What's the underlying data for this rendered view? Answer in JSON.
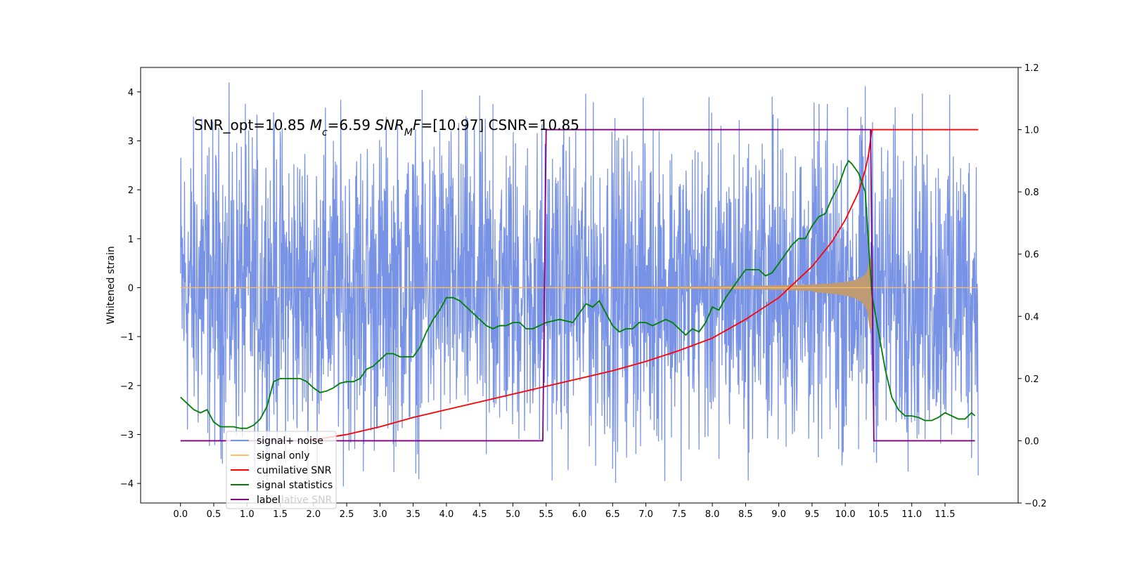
{
  "chart_data": {
    "type": "line",
    "title": "",
    "annotation": {
      "parts": [
        {
          "text": "SNR_opt=10.85 "
        },
        {
          "text": "M",
          "italic": true
        },
        {
          "text": "c",
          "italic": true,
          "sub": true
        },
        {
          "text": "=6.59    "
        },
        {
          "text": "SNR",
          "italic": true
        },
        {
          "text": "M",
          "italic": true,
          "sub": true
        },
        {
          "text": "F",
          "italic": true
        },
        {
          "text": "=[10.97] CSNR=10.85"
        }
      ]
    },
    "xlabel": "",
    "ylabel": "Whitened strain",
    "y2label": "",
    "xlim": [
      -0.6,
      12.6
    ],
    "ylim": [
      -4.4,
      4.5
    ],
    "y2lim": [
      -0.2,
      1.2
    ],
    "xticks": [
      0.0,
      0.5,
      1.0,
      1.5,
      2.0,
      2.5,
      3.0,
      3.5,
      4.0,
      4.5,
      5.0,
      5.5,
      6.0,
      6.5,
      7.0,
      7.5,
      8.0,
      8.5,
      9.0,
      9.5,
      10.0,
      10.5,
      11.0,
      11.5
    ],
    "xtick_labels": [
      "0.0",
      "0.5",
      "1.0",
      "1.5",
      "2.0",
      "2.5",
      "3.0",
      "3.5",
      "4.0",
      "4.5",
      "5.0",
      "5.5",
      "6.0",
      "6.5",
      "7.0",
      "7.5",
      "8.0",
      "8.5",
      "9.0",
      "9.5",
      "10.0",
      "10.5",
      "11.0",
      "11.5"
    ],
    "yticks": [
      -4,
      -3,
      -2,
      -1,
      0,
      1,
      2,
      3,
      4
    ],
    "ytick_labels": [
      "−4",
      "−3",
      "−2",
      "−1",
      "0",
      "1",
      "2",
      "3",
      "4"
    ],
    "y2ticks": [
      -0.2,
      0.0,
      0.2,
      0.4,
      0.6,
      0.8,
      1.0,
      1.2
    ],
    "y2tick_labels": [
      "−0.2",
      "0.0",
      "0.2",
      "0.4",
      "0.6",
      "0.8",
      "1.0",
      "1.2"
    ],
    "grid": false,
    "legend_position": "lower-left",
    "series": [
      {
        "name": "signal+ noise",
        "axis": "left",
        "color": "#7893e6",
        "kind": "noise",
        "x_range": [
          0.0,
          12.0
        ],
        "envelope": 2.5,
        "spikes": [
          {
            "x": 0.32,
            "y": 3.45
          },
          {
            "x": 1.7,
            "y": -2.7
          },
          {
            "x": 2.3,
            "y": 3.0
          },
          {
            "x": 2.75,
            "y": -3.75
          },
          {
            "x": 3.2,
            "y": -3.2
          },
          {
            "x": 4.7,
            "y": 3.75
          },
          {
            "x": 4.6,
            "y": -3.4
          },
          {
            "x": 5.4,
            "y": -3.1
          },
          {
            "x": 6.5,
            "y": -3.7
          },
          {
            "x": 7.2,
            "y": 3.2
          },
          {
            "x": 8.1,
            "y": -3.5
          },
          {
            "x": 8.9,
            "y": 3.9
          },
          {
            "x": 9.9,
            "y": -3.3
          },
          {
            "x": 10.3,
            "y": 4.12
          },
          {
            "x": 10.2,
            "y": -3.3
          },
          {
            "x": 11.2,
            "y": -3.1
          },
          {
            "x": 11.6,
            "y": -3.0
          },
          {
            "x": 3.9,
            "y": 3.2
          }
        ]
      },
      {
        "name": "signal only",
        "axis": "left",
        "color": "#ffbf66",
        "kind": "chirp",
        "merger_x": 10.4,
        "peak_amplitude": 1.0
      },
      {
        "name": "cumilative SNR",
        "axis": "right",
        "color": "#ff0000",
        "x": [
          1.9,
          2.5,
          3.0,
          3.5,
          4.0,
          4.5,
          5.0,
          5.5,
          6.0,
          6.5,
          7.0,
          7.5,
          8.0,
          8.5,
          9.0,
          9.5,
          9.8,
          10.0,
          10.2,
          10.3,
          10.35,
          10.4,
          10.42,
          12.0
        ],
        "values": [
          0.0,
          0.02,
          0.045,
          0.075,
          0.1,
          0.125,
          0.15,
          0.175,
          0.2,
          0.225,
          0.255,
          0.29,
          0.33,
          0.39,
          0.46,
          0.56,
          0.64,
          0.71,
          0.8,
          0.87,
          0.92,
          1.0,
          1.0,
          1.0
        ]
      },
      {
        "name": "signal statistics",
        "axis": "right",
        "color": "#007f00",
        "x": [
          0.0,
          0.05,
          0.1,
          0.2,
          0.3,
          0.4,
          0.5,
          0.6,
          0.7,
          0.8,
          0.9,
          1.0,
          1.1,
          1.2,
          1.3,
          1.4,
          1.5,
          1.6,
          1.7,
          1.8,
          1.9,
          2.0,
          2.1,
          2.2,
          2.3,
          2.4,
          2.5,
          2.6,
          2.7,
          2.8,
          2.9,
          3.0,
          3.1,
          3.2,
          3.3,
          3.4,
          3.5,
          3.6,
          3.7,
          3.8,
          3.9,
          4.0,
          4.1,
          4.2,
          4.3,
          4.4,
          4.5,
          4.6,
          4.7,
          4.8,
          4.9,
          5.0,
          5.1,
          5.2,
          5.3,
          5.4,
          5.5,
          5.6,
          5.7,
          5.8,
          5.9,
          6.0,
          6.1,
          6.2,
          6.3,
          6.4,
          6.5,
          6.6,
          6.7,
          6.8,
          6.9,
          7.0,
          7.1,
          7.2,
          7.3,
          7.4,
          7.5,
          7.6,
          7.7,
          7.8,
          7.9,
          8.0,
          8.1,
          8.2,
          8.3,
          8.4,
          8.5,
          8.6,
          8.7,
          8.8,
          8.9,
          9.0,
          9.1,
          9.2,
          9.3,
          9.4,
          9.5,
          9.6,
          9.7,
          9.8,
          9.9,
          10.0,
          10.05,
          10.1,
          10.2,
          10.3,
          10.4,
          10.5,
          10.6,
          10.7,
          10.8,
          10.9,
          11.0,
          11.1,
          11.2,
          11.3,
          11.4,
          11.5,
          11.6,
          11.7,
          11.8,
          11.9,
          11.95
        ],
        "values": [
          0.14,
          0.13,
          0.12,
          0.1,
          0.09,
          0.1,
          0.06,
          0.045,
          0.045,
          0.045,
          0.04,
          0.04,
          0.05,
          0.07,
          0.11,
          0.19,
          0.2,
          0.2,
          0.2,
          0.2,
          0.19,
          0.17,
          0.155,
          0.16,
          0.17,
          0.185,
          0.19,
          0.19,
          0.2,
          0.23,
          0.24,
          0.26,
          0.28,
          0.28,
          0.27,
          0.27,
          0.27,
          0.3,
          0.35,
          0.39,
          0.42,
          0.46,
          0.46,
          0.45,
          0.43,
          0.41,
          0.39,
          0.37,
          0.36,
          0.37,
          0.37,
          0.38,
          0.38,
          0.36,
          0.36,
          0.37,
          0.38,
          0.385,
          0.39,
          0.385,
          0.38,
          0.41,
          0.44,
          0.43,
          0.45,
          0.41,
          0.37,
          0.35,
          0.36,
          0.36,
          0.38,
          0.38,
          0.37,
          0.38,
          0.39,
          0.38,
          0.36,
          0.34,
          0.36,
          0.35,
          0.38,
          0.43,
          0.42,
          0.46,
          0.49,
          0.52,
          0.55,
          0.55,
          0.55,
          0.53,
          0.54,
          0.57,
          0.6,
          0.63,
          0.65,
          0.65,
          0.69,
          0.72,
          0.73,
          0.78,
          0.82,
          0.88,
          0.9,
          0.89,
          0.86,
          0.8,
          0.47,
          0.35,
          0.23,
          0.14,
          0.1,
          0.08,
          0.08,
          0.075,
          0.065,
          0.065,
          0.075,
          0.09,
          0.08,
          0.07,
          0.07,
          0.09,
          0.08
        ]
      },
      {
        "name": "label",
        "axis": "right",
        "color": "#800080",
        "x": [
          0.0,
          5.45,
          5.5,
          10.38,
          10.43,
          11.95
        ],
        "values": [
          0.0,
          0.0,
          1.0,
          1.0,
          0.0,
          0.0
        ]
      }
    ],
    "legend_overlap_text": "lative SNR"
  }
}
